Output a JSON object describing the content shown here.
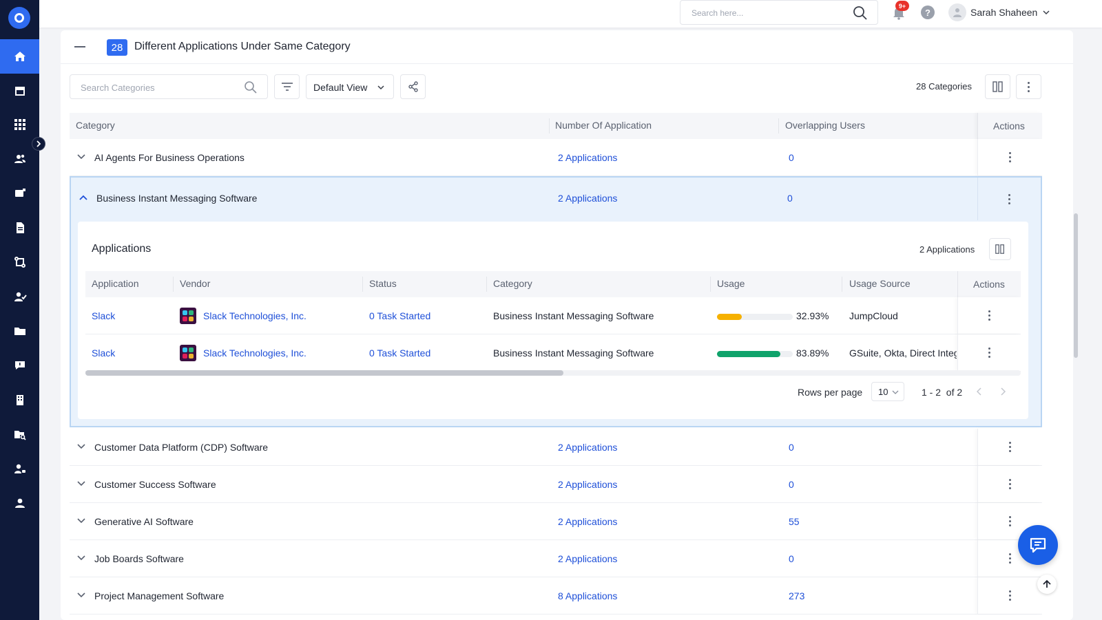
{
  "colors": {
    "sidebar_bg": "#0f1a3a",
    "accent": "#2f6bf0",
    "link": "#1e4fd8",
    "usage_low": "#f6b100",
    "usage_high": "#10a36b",
    "badge_red": "#e8322b"
  },
  "sidebar": {
    "logo": "app-logo",
    "items": [
      {
        "icon": "home-icon",
        "active": true
      },
      {
        "icon": "store-icon"
      },
      {
        "icon": "apps-grid-icon"
      },
      {
        "icon": "users-icon"
      },
      {
        "icon": "contract-icon"
      },
      {
        "icon": "document-icon"
      },
      {
        "icon": "workflow-icon"
      },
      {
        "icon": "user-check-icon"
      },
      {
        "icon": "folder-icon"
      },
      {
        "icon": "feedback-icon"
      },
      {
        "icon": "building-icon"
      },
      {
        "icon": "folder-search-icon"
      },
      {
        "icon": "user-settings-icon"
      },
      {
        "icon": "profile-icon"
      }
    ]
  },
  "topbar": {
    "search_placeholder": "Search here...",
    "notification_badge": "9+",
    "help_label": "?",
    "user_name": "Sarah Shaheen"
  },
  "section": {
    "count": "28",
    "title": "Different Applications Under Same Category",
    "search_placeholder": "Search Categories",
    "view_label": "Default View",
    "categories_count": "28 Categories"
  },
  "table": {
    "headers": {
      "category": "Category",
      "num_apps": "Number Of Application",
      "overlap": "Overlapping Users",
      "actions": "Actions"
    },
    "rows": [
      {
        "category": "AI Agents For Business Operations",
        "apps": "2 Applications",
        "users": "0"
      },
      {
        "category": "Business Instant Messaging Software",
        "apps": "2 Applications",
        "users": "0",
        "expanded": true
      },
      {
        "category": "Customer Data Platform (CDP) Software",
        "apps": "2 Applications",
        "users": "0"
      },
      {
        "category": "Customer Success Software",
        "apps": "2 Applications",
        "users": "0"
      },
      {
        "category": "Generative AI Software",
        "apps": "2 Applications",
        "users": "55"
      },
      {
        "category": "Job Boards Software",
        "apps": "2 Applications",
        "users": "0"
      },
      {
        "category": "Project Management Software",
        "apps": "8 Applications",
        "users": "273"
      }
    ]
  },
  "inner": {
    "title": "Applications",
    "count": "2 Applications",
    "headers": {
      "application": "Application",
      "vendor": "Vendor",
      "status": "Status",
      "category": "Category",
      "usage": "Usage",
      "usage_source": "Usage Source",
      "actions": "Actions"
    },
    "rows": [
      {
        "application": "Slack",
        "vendor": "Slack Technologies, Inc.",
        "status": "0 Task Started",
        "category": "Business Instant Messaging Software",
        "usage": 0.3293,
        "usage_label": "32.93%",
        "usage_source": "JumpCloud"
      },
      {
        "application": "Slack",
        "vendor": "Slack Technologies, Inc.",
        "status": "0 Task Started",
        "category": "Business Instant Messaging Software",
        "usage": 0.8389,
        "usage_label": "83.89%",
        "usage_source": "GSuite, Okta, Direct Integ"
      }
    ],
    "pager": {
      "rows_per_page_label": "Rows per page",
      "rows_per_page": "10",
      "range": "1 - 2",
      "of_label": "of 2"
    }
  }
}
